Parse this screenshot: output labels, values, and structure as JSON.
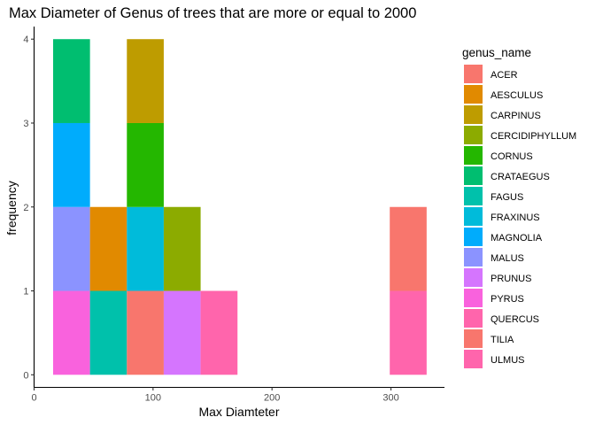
{
  "chart_data": {
    "type": "bar",
    "subtype": "stacked-histogram",
    "title": "Max Diameter of Genus of trees that are more or equal to 2000",
    "xlabel": "Max Diamteter",
    "ylabel": "frequency",
    "xlim": [
      0,
      345
    ],
    "ylim": [
      -0.15,
      4.15
    ],
    "x_ticks": [
      0,
      100,
      200,
      300
    ],
    "y_ticks": [
      0,
      1,
      2,
      3,
      4
    ],
    "grid": false,
    "legend": {
      "title": "genus_name",
      "position": "right"
    },
    "series": [
      {
        "name": "ACER",
        "color": "#F8766D"
      },
      {
        "name": "AESCULUS",
        "color": "#E18A00"
      },
      {
        "name": "CARPINUS",
        "color": "#BE9C00"
      },
      {
        "name": "CERCIDIPHYLLUM",
        "color": "#8CAB00"
      },
      {
        "name": "CORNUS",
        "color": "#24B700"
      },
      {
        "name": "CRATAEGUS",
        "color": "#00BE70"
      },
      {
        "name": "FAGUS",
        "color": "#00C1AB"
      },
      {
        "name": "FRAXINUS",
        "color": "#00BBDA"
      },
      {
        "name": "MAGNOLIA",
        "color": "#00ACFC"
      },
      {
        "name": "MALUS",
        "color": "#8B93FF"
      },
      {
        "name": "PRUNUS",
        "color": "#D575FE"
      },
      {
        "name": "PYRUS",
        "color": "#F962DD"
      },
      {
        "name": "QUERCUS",
        "color": "#FF65AC"
      },
      {
        "name": "TILIA",
        "color": "#F8766D"
      },
      {
        "name": "ULMUS",
        "color": "#FF65AC"
      }
    ],
    "bins": [
      {
        "x0": 16,
        "x1": 47,
        "segments": [
          {
            "genus": "PYRUS",
            "count": 1
          },
          {
            "genus": "MALUS",
            "count": 1
          },
          {
            "genus": "MAGNOLIA",
            "count": 1
          },
          {
            "genus": "CRATAEGUS",
            "count": 1
          }
        ]
      },
      {
        "x0": 47,
        "x1": 78,
        "segments": [
          {
            "genus": "FAGUS",
            "count": 1
          },
          {
            "genus": "AESCULUS",
            "count": 1
          }
        ]
      },
      {
        "x0": 78,
        "x1": 109,
        "segments": [
          {
            "genus": "TILIA",
            "count": 1
          },
          {
            "genus": "FRAXINUS",
            "count": 1
          },
          {
            "genus": "CORNUS",
            "count": 1
          },
          {
            "genus": "CARPINUS",
            "count": 1
          }
        ]
      },
      {
        "x0": 109,
        "x1": 140,
        "segments": [
          {
            "genus": "PRUNUS",
            "count": 1
          },
          {
            "genus": "CERCIDIPHYLLUM",
            "count": 1
          }
        ]
      },
      {
        "x0": 140,
        "x1": 171,
        "segments": [
          {
            "genus": "ULMUS",
            "count": 1
          }
        ]
      },
      {
        "x0": 299,
        "x1": 330,
        "segments": [
          {
            "genus": "QUERCUS",
            "count": 1
          },
          {
            "genus": "ACER",
            "count": 1
          }
        ]
      }
    ]
  }
}
